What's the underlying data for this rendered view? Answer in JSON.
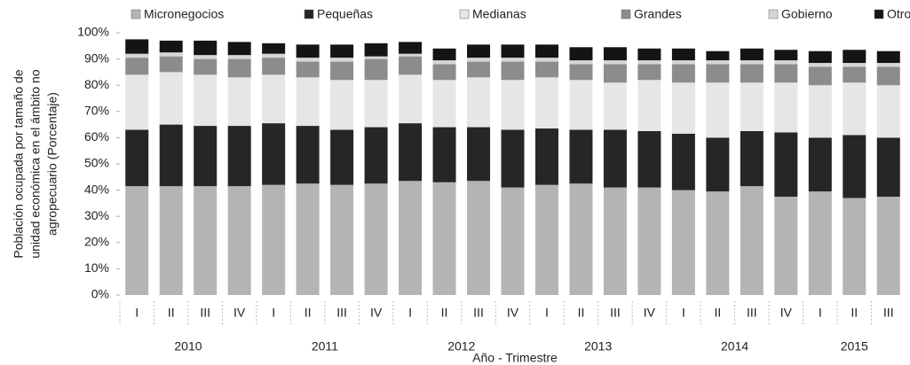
{
  "chart_data": {
    "type": "stacked_bar",
    "ylabel": [
      "Población ocupada  por  tamaño de",
      "unidad económica en el ámbito no",
      "agropecuario  (Porcentaje)"
    ],
    "xlabel": "Año - Trimestre",
    "categories": [
      "I",
      "II",
      "III",
      "IV",
      "I",
      "II",
      "III",
      "IV",
      "I",
      "II",
      "III",
      "IV",
      "I",
      "II",
      "III",
      "IV",
      "I",
      "II",
      "III",
      "IV",
      "I",
      "II",
      "III"
    ],
    "group_labels": [
      "2010",
      "2011",
      "2012",
      "2013",
      "2014",
      "2015"
    ],
    "ylim": [
      0,
      100
    ],
    "yticks": [
      {
        "value": 0,
        "label": "0%"
      },
      {
        "value": 10,
        "label": "10%"
      },
      {
        "value": 20,
        "label": "20%"
      },
      {
        "value": 30,
        "label": "30%"
      },
      {
        "value": 40,
        "label": "40%"
      },
      {
        "value": 50,
        "label": "50%"
      },
      {
        "value": 60,
        "label": "60%"
      },
      {
        "value": 70,
        "label": "70%"
      },
      {
        "value": 80,
        "label": "80%"
      },
      {
        "value": 90,
        "label": "90%"
      },
      {
        "value": 100,
        "label": "100%"
      }
    ],
    "legend": "top",
    "series": [
      {
        "name": "Micronegocios",
        "color": "#b4b4b4",
        "values": [
          41.5,
          41.5,
          41.5,
          41.5,
          42,
          42.5,
          42,
          42.5,
          43.5,
          43,
          43.5,
          41,
          42,
          42.5,
          41,
          41,
          40,
          39.5,
          41.5,
          37.5,
          39.5,
          37,
          37.5
        ]
      },
      {
        "name": "Pequeñas",
        "color": "#262626",
        "values": [
          21.5,
          23.5,
          23,
          23,
          23.5,
          22,
          21,
          21.5,
          22,
          21,
          20.5,
          22,
          21.5,
          20.5,
          22,
          21.5,
          21.5,
          20.5,
          21,
          24.5,
          20.5,
          24,
          22.5
        ]
      },
      {
        "name": "Medianas",
        "color": "#e6e6e6",
        "values": [
          21,
          20,
          19.5,
          18.5,
          18.5,
          18.5,
          19,
          18,
          18.5,
          18,
          19,
          19,
          19.5,
          19,
          18,
          19.5,
          19.5,
          21,
          18.5,
          19,
          20,
          20,
          20
        ]
      },
      {
        "name": "Grandes",
        "color": "#8c8c8c",
        "values": [
          6.5,
          6,
          6,
          7,
          6.5,
          6,
          7,
          8,
          7,
          6,
          6,
          7,
          6,
          6,
          7,
          6,
          7,
          7,
          7,
          7,
          7,
          6,
          7
        ]
      },
      {
        "name": "Gobierno",
        "color": "#d6d6d6",
        "values": [
          1.5,
          1.5,
          1.5,
          1.5,
          1.5,
          1.5,
          1.5,
          1,
          1,
          1.5,
          1.5,
          1.5,
          1.5,
          1.5,
          1.5,
          1.5,
          1.5,
          1.5,
          1.5,
          1.5,
          1.5,
          1.5,
          1.5
        ]
      },
      {
        "name": "Otros",
        "color": "#141414",
        "values": [
          5.5,
          4.5,
          5.5,
          5,
          4,
          5,
          5,
          5,
          4.5,
          4.5,
          5,
          5,
          5,
          5,
          5,
          4.5,
          4.5,
          3.5,
          4.5,
          4,
          4.5,
          5,
          4.5
        ]
      }
    ]
  }
}
